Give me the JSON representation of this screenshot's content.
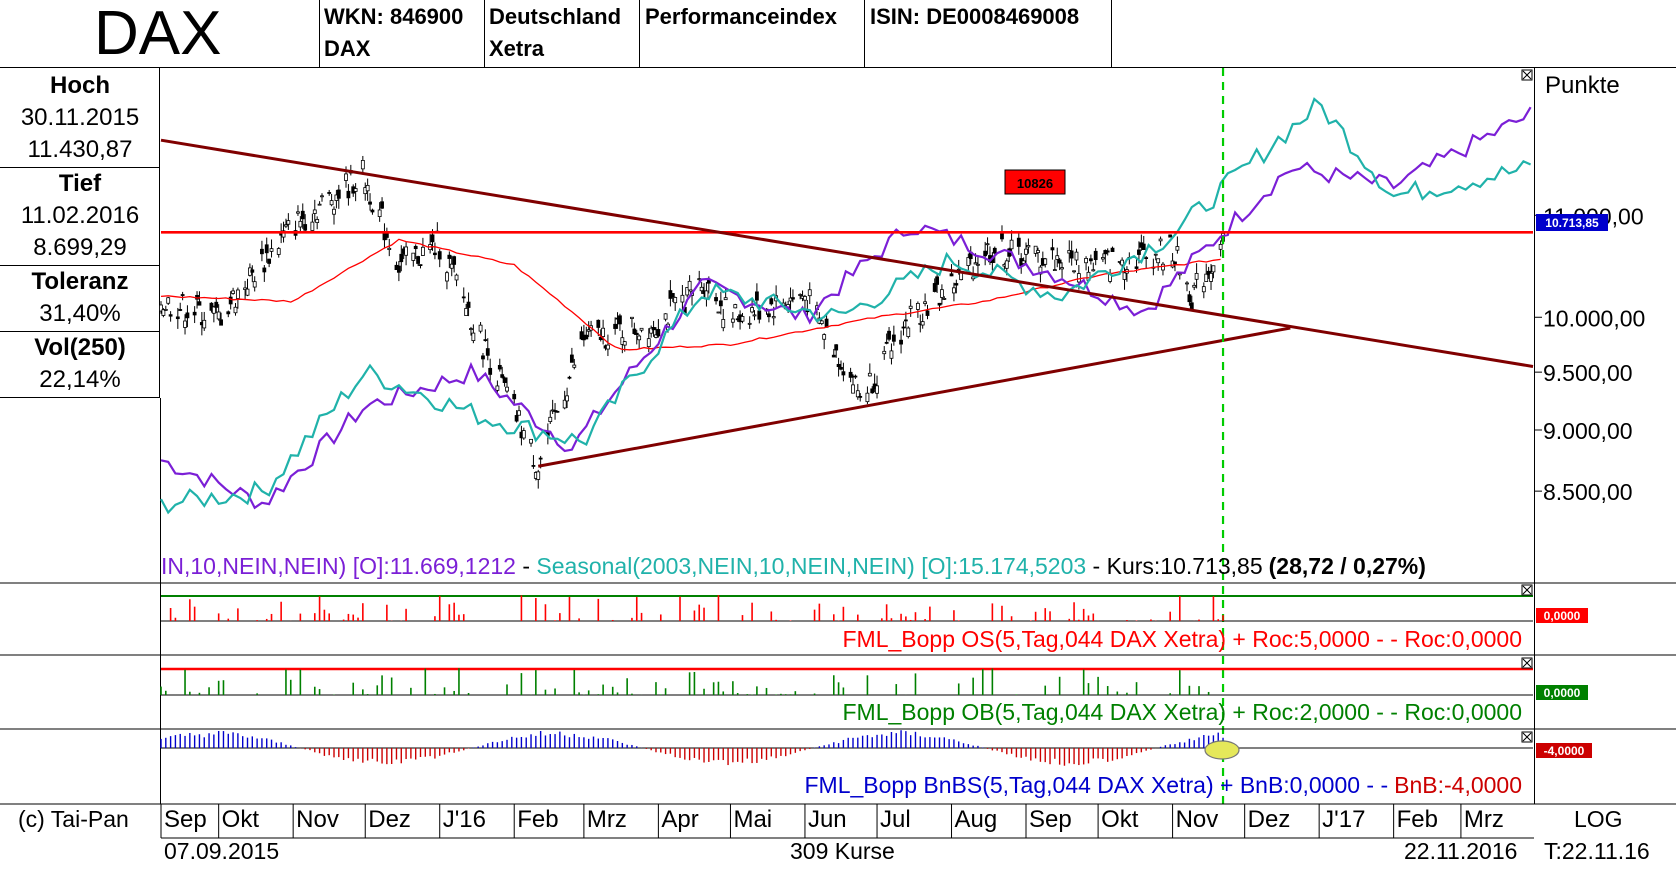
{
  "header": {
    "title": "DAX",
    "wkn": "WKN: 846900",
    "name": "DAX",
    "country": "Deutschland",
    "exchange": "Xetra",
    "index_type": "Performanceindex",
    "isin": "ISIN: DE0008469008"
  },
  "sidebar": {
    "hoch_label": "Hoch",
    "hoch_date": "30.11.2015",
    "hoch_value": "11.430,87",
    "tief_label": "Tief",
    "tief_date": "11.02.2016",
    "tief_value": "8.699,29",
    "toleranz_label": "Toleranz",
    "toleranz_value": "31,40%",
    "vol_label": "Vol(250)",
    "vol_value": "22,14%"
  },
  "main_panel": {
    "unit": "Punkte",
    "legend_purple": "IN,10,NEIN,NEIN) [O]:11.669,1212",
    "legend_sep1": " - ",
    "legend_teal": "Seasonal(2003,NEIN,10,NEIN,NEIN) [O]:15.174,5203",
    "legend_sep2": " - ",
    "legend_kurs": "Kurs:10.713,85",
    "legend_change": "(28,72 / 0,27%)",
    "resistance_label": "10826",
    "last_price_badge": "10.713,85"
  },
  "indicators": {
    "os_label": "FML_Bopp OS(5,Tag,044 DAX Xetra) + Roc:5,0000 - - Roc:0,0000",
    "os_badge": "0,0000",
    "ob_label": "FML_Bopp OB(5,Tag,044 DAX Xetra) + Roc:2,0000 - - Roc:0,0000",
    "ob_badge": "0,0000",
    "bnbs_label_blue": "FML_Bopp BnBS(5,Tag,044 DAX Xetra) + BnB:0,0000 - -",
    "bnbs_label_red": "BnB:-4,0000",
    "bnbs_badge": "-4,0000"
  },
  "footer": {
    "copyright": "(c) Tai-Pan",
    "start_date": "07.09.2015",
    "count": "309 Kurse",
    "end_date": "22.11.2016",
    "scale": "LOG",
    "timestamp": "T:22.11.16",
    "months": [
      "Sep",
      "Okt",
      "Nov",
      "Dez",
      "J'16",
      "Feb",
      "Mrz",
      "Apr",
      "Mai",
      "Jun",
      "Jul",
      "Aug",
      "Sep",
      "Okt",
      "Nov",
      "Dez",
      "J'17",
      "Feb",
      "Mrz"
    ]
  },
  "colors": {
    "resistance": "#ff0000",
    "trendline": "#800000",
    "seasonal_purple": "#7b1fd6",
    "seasonal_teal": "#20b2aa",
    "candles": "#000000",
    "sma": "#ff0000",
    "today_line": "#00cc00",
    "os_bars": "#ff0000",
    "ob_bars": "#008000",
    "bnbs_blue": "#0000cc",
    "bnbs_red": "#cc0000"
  },
  "chart_data": {
    "type": "line",
    "scale": "log",
    "y_ticks": [
      8500,
      9000,
      9500,
      10000,
      11000
    ],
    "y_tick_labels": [
      "8.500,00",
      "9.000,00",
      "9.500,00",
      "10.000,00",
      "11.000,00"
    ],
    "ylim": [
      8000,
      12600
    ],
    "x_range": [
      "2015-09-07",
      "2017-03-31"
    ],
    "today": "2016-11-22",
    "resistance_level": 10826,
    "series": [
      {
        "name": "Kurs",
        "kind": "ohlc-bars",
        "dates": [
          "2015-09-07",
          "2015-10-01",
          "2015-11-01",
          "2015-11-30",
          "2015-12-15",
          "2016-01-01",
          "2016-01-20",
          "2016-02-11",
          "2016-03-01",
          "2016-04-01",
          "2016-04-20",
          "2016-05-01",
          "2016-06-01",
          "2016-06-24",
          "2016-07-01",
          "2016-07-15",
          "2016-08-01",
          "2016-08-15",
          "2016-09-01",
          "2016-10-01",
          "2016-11-01",
          "2016-11-09",
          "2016-11-22"
        ],
        "values": [
          10150,
          10000,
          10900,
          11430,
          10500,
          10700,
          9700,
          8700,
          9800,
          9950,
          10350,
          10000,
          10200,
          9300,
          9500,
          10000,
          10300,
          10650,
          10600,
          10500,
          10650,
          10200,
          10714
        ]
      },
      {
        "name": "SMA",
        "kind": "line",
        "dates": [
          "2015-09-07",
          "2015-11-01",
          "2015-12-15",
          "2016-02-01",
          "2016-03-15",
          "2016-05-01",
          "2016-07-01",
          "2016-08-15",
          "2016-10-01",
          "2016-11-22"
        ],
        "values": [
          10200,
          10150,
          10750,
          10500,
          9700,
          9750,
          10000,
          10150,
          10400,
          10560
        ]
      },
      {
        "name": "Seasonal purple",
        "kind": "line",
        "dates": [
          "2015-09-07",
          "2015-10-20",
          "2015-12-01",
          "2016-01-15",
          "2016-02-25",
          "2016-04-20",
          "2016-06-01",
          "2016-07-15",
          "2016-09-15",
          "2016-10-20",
          "2016-12-20",
          "2017-02-01",
          "2017-03-31"
        ],
        "values": [
          8750,
          8400,
          9200,
          9500,
          8850,
          10300,
          10000,
          10900,
          10400,
          10050,
          11500,
          11300,
          12100
        ]
      },
      {
        "name": "Seasonal teal",
        "kind": "line",
        "dates": [
          "2015-09-07",
          "2015-10-20",
          "2015-12-01",
          "2016-01-20",
          "2016-03-01",
          "2016-04-20",
          "2016-06-15",
          "2016-08-01",
          "2016-09-15",
          "2016-11-01",
          "2017-01-01",
          "2017-02-01",
          "2017-03-31"
        ],
        "values": [
          8400,
          8500,
          9500,
          9100,
          8900,
          10250,
          10000,
          10550,
          10200,
          10800,
          12200,
          11200,
          11500
        ]
      }
    ],
    "trendlines": [
      {
        "from": [
          "2015-09-07",
          11800
        ],
        "to": [
          "2017-03-31",
          9550
        ]
      },
      {
        "from": [
          "2016-02-11",
          8700
        ],
        "to": [
          "2016-12-20",
          9900
        ]
      }
    ]
  }
}
